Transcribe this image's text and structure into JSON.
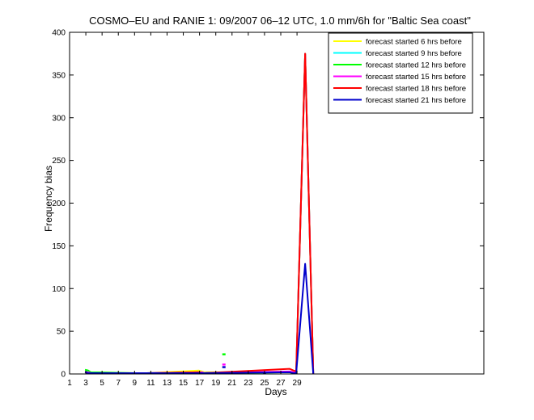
{
  "chart_data": {
    "type": "line",
    "title": "COSMO–EU and RANIE 1: 09/2007 06–12 UTC, 1.0 mm/6h for \"Baltic Sea coast\"",
    "xlabel": "Days",
    "ylabel": "Frequency bias",
    "xlim": [
      1,
      52
    ],
    "ylim": [
      0,
      400
    ],
    "xticks": [
      1,
      3,
      5,
      7,
      9,
      11,
      13,
      15,
      17,
      19,
      21,
      23,
      25,
      27,
      29
    ],
    "yticks": [
      0,
      50,
      100,
      150,
      200,
      250,
      300,
      350,
      400
    ],
    "legend_position": "top-right",
    "series": [
      {
        "name": "forecast started 6 hrs before",
        "color": "#ffff00",
        "points": [
          [
            2.9,
            4
          ],
          [
            3.3,
            3
          ],
          [
            3.6,
            2
          ],
          [
            9.1,
            1
          ],
          [
            10.5,
            1
          ],
          [
            16.9,
            4
          ],
          [
            17.3,
            3
          ],
          [
            17.6,
            2
          ],
          [
            28.1,
            2
          ],
          [
            28.6,
            1
          ],
          [
            28.9,
            2
          ],
          [
            30,
            375
          ],
          [
            31,
            0.5
          ]
        ]
      },
      {
        "name": "forecast started 9 hrs before",
        "color": "#00ffff",
        "points": [
          [
            2.9,
            3
          ],
          [
            3.3,
            2
          ],
          [
            3.6,
            1
          ],
          [
            9.1,
            1
          ],
          [
            10.5,
            1
          ],
          [
            16.9,
            2
          ],
          [
            17.3,
            2
          ],
          [
            17.6,
            1
          ],
          [
            28.1,
            2
          ],
          [
            28.6,
            1
          ],
          [
            28.9,
            2
          ],
          [
            30,
            375
          ],
          [
            31,
            0.5
          ]
        ]
      },
      {
        "name": "forecast started 12 hrs before",
        "color": "#00ff00",
        "points": [
          [
            2.9,
            5
          ],
          [
            3.3,
            4
          ],
          [
            3.6,
            2
          ],
          [
            9.1,
            1
          ],
          [
            10.5,
            1
          ],
          [
            16.9,
            2
          ],
          [
            17.3,
            1
          ],
          [
            17.6,
            1
          ],
          [
            28.1,
            2
          ],
          [
            28.6,
            1
          ],
          [
            28.9,
            2
          ],
          [
            30,
            375
          ],
          [
            31,
            0.5
          ]
        ],
        "isolated_points": [
          [
            20,
            23
          ]
        ]
      },
      {
        "name": "forecast started 15 hrs before",
        "color": "#ff00ff",
        "points": [
          [
            2.9,
            2
          ],
          [
            3.3,
            2
          ],
          [
            3.6,
            1
          ],
          [
            9.1,
            1
          ],
          [
            10.5,
            1
          ],
          [
            16.9,
            2
          ],
          [
            17.3,
            2
          ],
          [
            17.6,
            1
          ],
          [
            28.1,
            3
          ],
          [
            28.6,
            2
          ],
          [
            28.9,
            2
          ],
          [
            30,
            375
          ],
          [
            31,
            0.5
          ]
        ],
        "isolated_points": [
          [
            20,
            11
          ]
        ]
      },
      {
        "name": "forecast started 18 hrs before",
        "color": "#ff0000",
        "points": [
          [
            2.9,
            2
          ],
          [
            3.3,
            1
          ],
          [
            3.6,
            1
          ],
          [
            9.1,
            1
          ],
          [
            10.5,
            1
          ],
          [
            16.9,
            2
          ],
          [
            17.3,
            1
          ],
          [
            17.6,
            1
          ],
          [
            28.1,
            6
          ],
          [
            28.6,
            4
          ],
          [
            28.9,
            3
          ],
          [
            30,
            375
          ],
          [
            31,
            0.5
          ]
        ]
      },
      {
        "name": "forecast started 21 hrs before",
        "color": "#0000cc",
        "points": [
          [
            2.9,
            2
          ],
          [
            3.3,
            1
          ],
          [
            3.6,
            1
          ],
          [
            9.1,
            1
          ],
          [
            10.5,
            1
          ],
          [
            16.9,
            1
          ],
          [
            17.3,
            1
          ],
          [
            17.6,
            1
          ],
          [
            28.1,
            2
          ],
          [
            28.6,
            1
          ],
          [
            28.9,
            1
          ],
          [
            30,
            129
          ],
          [
            31,
            0.5
          ]
        ],
        "isolated_points": [
          [
            20,
            8
          ],
          [
            25,
            1
          ]
        ]
      }
    ]
  }
}
